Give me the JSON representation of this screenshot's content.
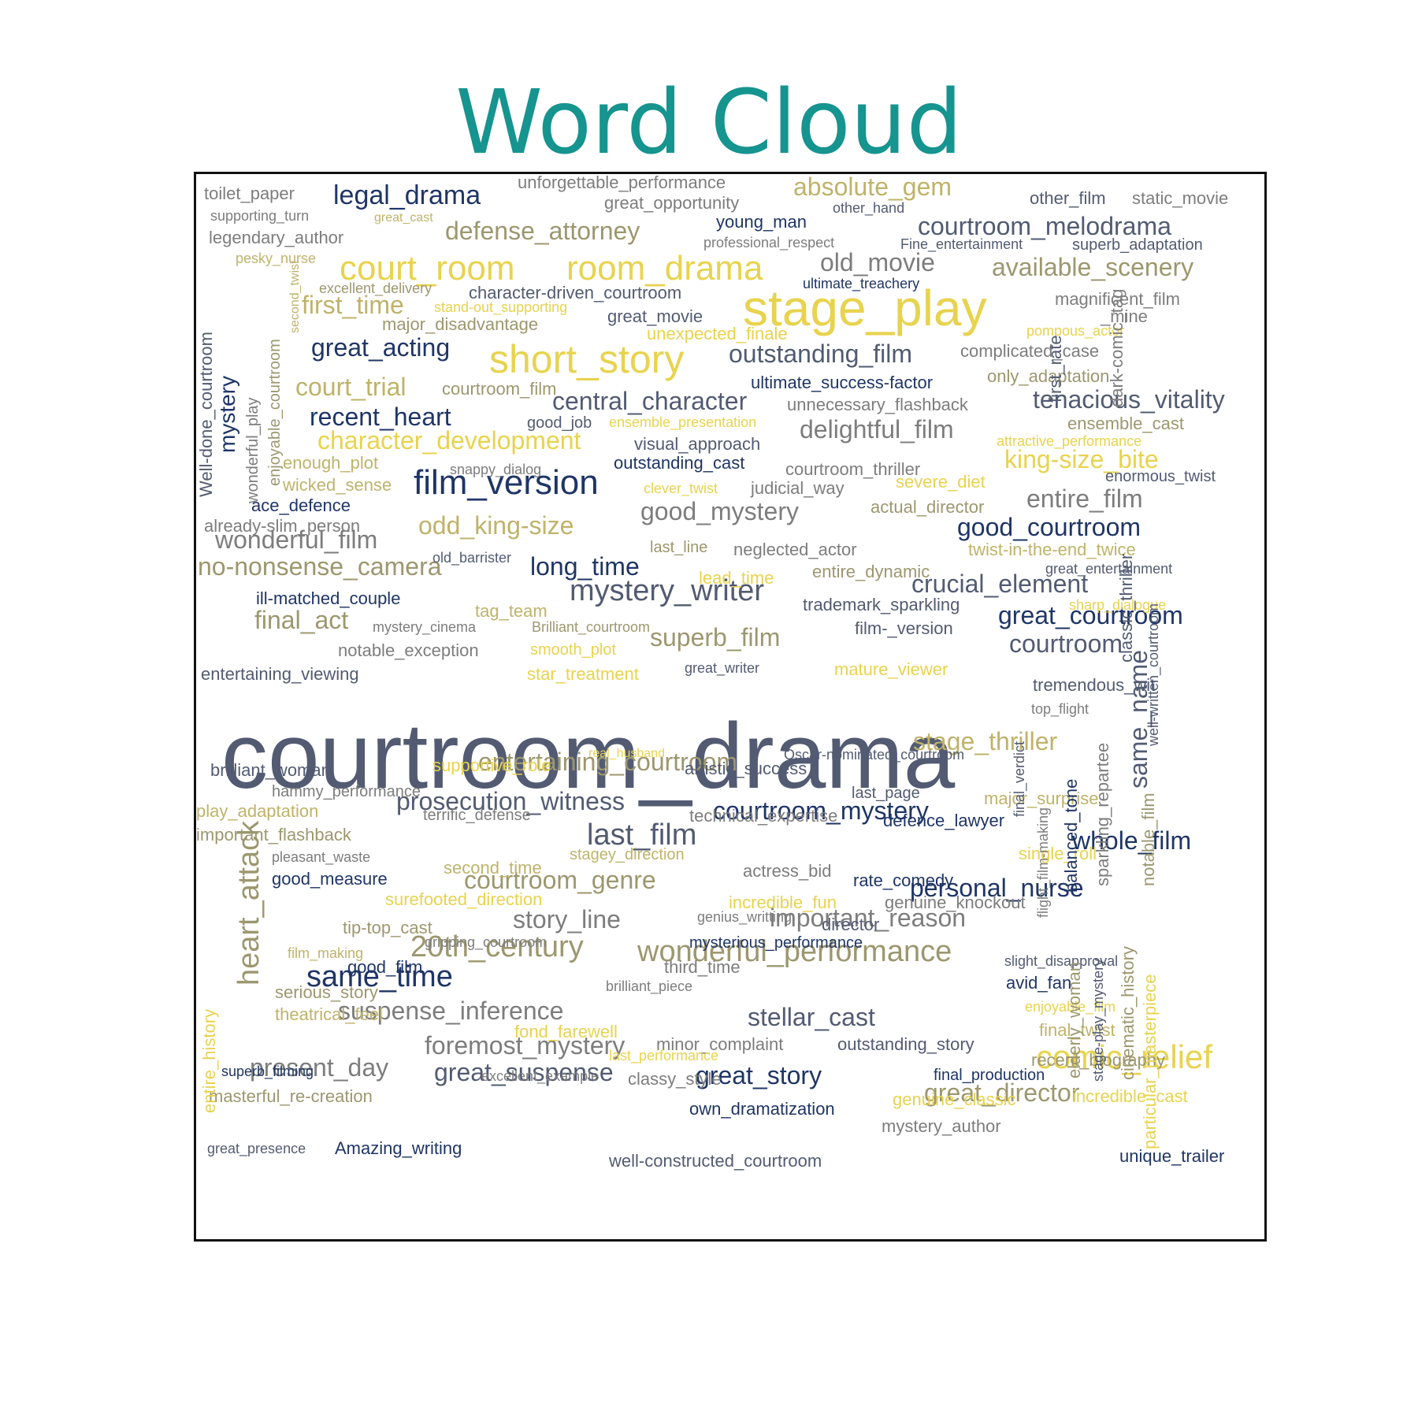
{
  "title": "Word Cloud",
  "palette": {
    "navy": "#1f3566",
    "slate": "#525b72",
    "gray": "#7d7d7d",
    "khaki": "#9d976f",
    "tan": "#bfb36a",
    "yellow": "#e8d34e"
  },
  "chart_data": {
    "type": "wordcloud",
    "title": "Word Cloud",
    "words": [
      {
        "text": "courtroom_drama",
        "weight": 100,
        "color": "slate"
      },
      {
        "text": "stage_play",
        "weight": 38,
        "color": "yellow"
      },
      {
        "text": "court_room",
        "weight": 26,
        "color": "yellow"
      },
      {
        "text": "room_drama",
        "weight": 26,
        "color": "yellow"
      },
      {
        "text": "short_story",
        "weight": 28,
        "color": "yellow"
      },
      {
        "text": "film_version",
        "weight": 24,
        "color": "navy"
      },
      {
        "text": "wonderful_performance",
        "weight": 21,
        "color": "khaki"
      },
      {
        "text": "comic_relief",
        "weight": 23,
        "color": "yellow"
      },
      {
        "text": "heart_attack",
        "weight": 20,
        "color": "khaki"
      },
      {
        "text": "mystery_writer",
        "weight": 21,
        "color": "slate"
      },
      {
        "text": "20th_century",
        "weight": 21,
        "color": "khaki"
      },
      {
        "text": "same_time",
        "weight": 21,
        "color": "navy"
      },
      {
        "text": "last_film",
        "weight": 21,
        "color": "slate"
      },
      {
        "text": "legal_drama",
        "weight": 19,
        "color": "navy"
      },
      {
        "text": "absolute_gem",
        "weight": 17,
        "color": "tan"
      },
      {
        "text": "defense_attorney",
        "weight": 18,
        "color": "khaki"
      },
      {
        "text": "courtroom_melodrama",
        "weight": 18,
        "color": "slate"
      },
      {
        "text": "old_movie",
        "weight": 18,
        "color": "gray"
      },
      {
        "text": "available_scenery",
        "weight": 18,
        "color": "khaki"
      },
      {
        "text": "first_time",
        "weight": 18,
        "color": "tan"
      },
      {
        "text": "great_acting",
        "weight": 18,
        "color": "navy"
      },
      {
        "text": "outstanding_film",
        "weight": 18,
        "color": "slate"
      },
      {
        "text": "court_trial",
        "weight": 18,
        "color": "tan"
      },
      {
        "text": "central_character",
        "weight": 18,
        "color": "slate"
      },
      {
        "text": "tenacious_vitality",
        "weight": 18,
        "color": "slate"
      },
      {
        "text": "recent_heart",
        "weight": 18,
        "color": "navy"
      },
      {
        "text": "delightful_film",
        "weight": 18,
        "color": "gray"
      },
      {
        "text": "character_development",
        "weight": 18,
        "color": "yellow"
      },
      {
        "text": "king-size_bite",
        "weight": 18,
        "color": "yellow"
      },
      {
        "text": "good_mystery",
        "weight": 18,
        "color": "gray"
      },
      {
        "text": "entire_film",
        "weight": 18,
        "color": "gray"
      },
      {
        "text": "odd_king-size",
        "weight": 18,
        "color": "tan"
      },
      {
        "text": "good_courtroom",
        "weight": 18,
        "color": "navy"
      },
      {
        "text": "wonderful_film",
        "weight": 18,
        "color": "gray"
      },
      {
        "text": "long_time",
        "weight": 18,
        "color": "navy"
      },
      {
        "text": "no-nonsense_camera",
        "weight": 18,
        "color": "khaki"
      },
      {
        "text": "crucial_element",
        "weight": 18,
        "color": "slate"
      },
      {
        "text": "final_act",
        "weight": 18,
        "color": "khaki"
      },
      {
        "text": "great_courtroom",
        "weight": 18,
        "color": "navy"
      },
      {
        "text": "superb_film",
        "weight": 18,
        "color": "khaki"
      },
      {
        "text": "courtroom",
        "weight": 18,
        "color": "slate"
      },
      {
        "text": "stage_thriller",
        "weight": 18,
        "color": "tan"
      },
      {
        "text": "entertaining_courtroom",
        "weight": 18,
        "color": "khaki"
      },
      {
        "text": "prosecution_witness",
        "weight": 18,
        "color": "slate"
      },
      {
        "text": "courtroom_mystery",
        "weight": 18,
        "color": "navy"
      },
      {
        "text": "whole_film",
        "weight": 18,
        "color": "navy"
      },
      {
        "text": "courtroom_genre",
        "weight": 18,
        "color": "khaki"
      },
      {
        "text": "personal_nurse",
        "weight": 18,
        "color": "navy"
      },
      {
        "text": "story_line",
        "weight": 18,
        "color": "gray"
      },
      {
        "text": "important_reason",
        "weight": 18,
        "color": "gray"
      },
      {
        "text": "suspense_inference",
        "weight": 18,
        "color": "gray"
      },
      {
        "text": "stellar_cast",
        "weight": 18,
        "color": "slate"
      },
      {
        "text": "foremost_mystery",
        "weight": 18,
        "color": "gray"
      },
      {
        "text": "present_day",
        "weight": 18,
        "color": "gray"
      },
      {
        "text": "great_suspense",
        "weight": 18,
        "color": "slate"
      },
      {
        "text": "great_story",
        "weight": 18,
        "color": "navy"
      },
      {
        "text": "great_director",
        "weight": 18,
        "color": "khaki"
      },
      {
        "text": "same_name",
        "weight": 18,
        "color": "slate"
      },
      {
        "text": "mystery",
        "weight": 16,
        "color": "navy"
      },
      {
        "text": "toilet_paper",
        "weight": 12,
        "color": "gray"
      },
      {
        "text": "unforgettable_performance",
        "weight": 12,
        "color": "gray"
      },
      {
        "text": "great_opportunity",
        "weight": 12,
        "color": "gray"
      },
      {
        "text": "other_film",
        "weight": 12,
        "color": "slate"
      },
      {
        "text": "static_movie",
        "weight": 12,
        "color": "gray"
      },
      {
        "text": "supporting_turn",
        "weight": 10,
        "color": "gray"
      },
      {
        "text": "great_cast",
        "weight": 10,
        "color": "tan"
      },
      {
        "text": "young_man",
        "weight": 12,
        "color": "navy"
      },
      {
        "text": "other_hand",
        "weight": 10,
        "color": "slate"
      },
      {
        "text": "legendary_author",
        "weight": 12,
        "color": "gray"
      },
      {
        "text": "professional_respect",
        "weight": 10,
        "color": "gray"
      },
      {
        "text": "Fine_entertainment",
        "weight": 10,
        "color": "slate"
      },
      {
        "text": "superb_adaptation",
        "weight": 11,
        "color": "slate"
      },
      {
        "text": "pesky_nurse",
        "weight": 10,
        "color": "tan"
      },
      {
        "text": "excellent_delivery",
        "weight": 10,
        "color": "khaki"
      },
      {
        "text": "ultimate_treachery",
        "weight": 10,
        "color": "navy"
      },
      {
        "text": "character-driven_courtroom",
        "weight": 12,
        "color": "slate"
      },
      {
        "text": "magnificent_film",
        "weight": 12,
        "color": "gray"
      },
      {
        "text": "stand-out_supporting",
        "weight": 10,
        "color": "yellow"
      },
      {
        "text": "great_movie",
        "weight": 12,
        "color": "slate"
      },
      {
        "text": "_mine",
        "weight": 12,
        "color": "gray"
      },
      {
        "text": "major_disadvantage",
        "weight": 12,
        "color": "khaki"
      },
      {
        "text": "unexpected_finale",
        "weight": 12,
        "color": "yellow"
      },
      {
        "text": "pompous_actor",
        "weight": 10,
        "color": "yellow"
      },
      {
        "text": "complicated_case",
        "weight": 12,
        "color": "gray"
      },
      {
        "text": "ultimate_success-factor",
        "weight": 12,
        "color": "navy"
      },
      {
        "text": "only_adaptation",
        "weight": 12,
        "color": "khaki"
      },
      {
        "text": "courtroom_film",
        "weight": 12,
        "color": "khaki"
      },
      {
        "text": "unnecessary_flashback",
        "weight": 12,
        "color": "gray"
      },
      {
        "text": "good_job",
        "weight": 10,
        "color": "slate"
      },
      {
        "text": "ensemble_presentation",
        "weight": 10,
        "color": "yellow"
      },
      {
        "text": "ensemble_cast",
        "weight": 12,
        "color": "khaki"
      },
      {
        "text": "visual_approach",
        "weight": 12,
        "color": "slate"
      },
      {
        "text": "attractive_performance",
        "weight": 10,
        "color": "yellow"
      },
      {
        "text": "enough_plot",
        "weight": 12,
        "color": "tan"
      },
      {
        "text": "snappy_dialog",
        "weight": 10,
        "color": "gray"
      },
      {
        "text": "outstanding_cast",
        "weight": 12,
        "color": "navy"
      },
      {
        "text": "courtroom_thriller",
        "weight": 12,
        "color": "gray"
      },
      {
        "text": "wicked_sense",
        "weight": 12,
        "color": "tan"
      },
      {
        "text": "clever_twist",
        "weight": 10,
        "color": "yellow"
      },
      {
        "text": "judicial_way",
        "weight": 12,
        "color": "gray"
      },
      {
        "text": "severe_diet",
        "weight": 12,
        "color": "yellow"
      },
      {
        "text": "enormous_twist",
        "weight": 11,
        "color": "slate"
      },
      {
        "text": "ace_defence",
        "weight": 12,
        "color": "navy"
      },
      {
        "text": "actual_director",
        "weight": 12,
        "color": "khaki"
      },
      {
        "text": "already-slim_person",
        "weight": 12,
        "color": "gray"
      },
      {
        "text": "last_line",
        "weight": 11,
        "color": "khaki"
      },
      {
        "text": "neglected_actor",
        "weight": 12,
        "color": "gray"
      },
      {
        "text": "twist-in-the-end_twice",
        "weight": 12,
        "color": "tan"
      },
      {
        "text": "old_barrister",
        "weight": 10,
        "color": "slate"
      },
      {
        "text": "lead_time",
        "weight": 12,
        "color": "yellow"
      },
      {
        "text": "entire_dynamic",
        "weight": 12,
        "color": "khaki"
      },
      {
        "text": "great_entertainment",
        "weight": 10,
        "color": "slate"
      },
      {
        "text": "ill-matched_couple",
        "weight": 12,
        "color": "navy"
      },
      {
        "text": "tag_team",
        "weight": 12,
        "color": "tan"
      },
      {
        "text": "trademark_sparkling",
        "weight": 12,
        "color": "slate"
      },
      {
        "text": "sharp_dialogue",
        "weight": 10,
        "color": "yellow"
      },
      {
        "text": "mystery_cinema",
        "weight": 10,
        "color": "gray"
      },
      {
        "text": "Brilliant_courtroom",
        "weight": 10,
        "color": "khaki"
      },
      {
        "text": "film-_version",
        "weight": 12,
        "color": "slate"
      },
      {
        "text": "notable_exception",
        "weight": 12,
        "color": "gray"
      },
      {
        "text": "smooth_plot",
        "weight": 11,
        "color": "yellow"
      },
      {
        "text": "entertaining_viewing",
        "weight": 12,
        "color": "slate"
      },
      {
        "text": "star_treatment",
        "weight": 12,
        "color": "yellow"
      },
      {
        "text": "great_writer",
        "weight": 10,
        "color": "slate"
      },
      {
        "text": "mature_viewer",
        "weight": 12,
        "color": "yellow"
      },
      {
        "text": "tremendous_wit",
        "weight": 12,
        "color": "slate"
      },
      {
        "text": "top_flight",
        "weight": 10,
        "color": "gray"
      },
      {
        "text": "real_husband",
        "weight": 9,
        "color": "yellow"
      },
      {
        "text": "Oscar-nominated_courtroom",
        "weight": 10,
        "color": "slate"
      },
      {
        "text": "brilliant_woman",
        "weight": 12,
        "color": "slate"
      },
      {
        "text": "supportive_role",
        "weight": 12,
        "color": "yellow"
      },
      {
        "text": "artistic_success",
        "weight": 12,
        "color": "slate"
      },
      {
        "text": "hammy_performance",
        "weight": 11,
        "color": "gray"
      },
      {
        "text": "last_page",
        "weight": 11,
        "color": "slate"
      },
      {
        "text": "major_surprise",
        "weight": 12,
        "color": "tan"
      },
      {
        "text": "play_adaptation",
        "weight": 12,
        "color": "tan"
      },
      {
        "text": "terrific_defense",
        "weight": 11,
        "color": "gray"
      },
      {
        "text": "technical_expertise",
        "weight": 12,
        "color": "gray"
      },
      {
        "text": "defence_lawyer",
        "weight": 12,
        "color": "navy"
      },
      {
        "text": "important_flashback",
        "weight": 12,
        "color": "khaki"
      },
      {
        "text": "pleasant_waste",
        "weight": 10,
        "color": "gray"
      },
      {
        "text": "stagey_direction",
        "weight": 11,
        "color": "tan"
      },
      {
        "text": "single_roll",
        "weight": 12,
        "color": "yellow"
      },
      {
        "text": "good_measure",
        "weight": 12,
        "color": "navy"
      },
      {
        "text": "second_time",
        "weight": 12,
        "color": "tan"
      },
      {
        "text": "actress_bid",
        "weight": 12,
        "color": "gray"
      },
      {
        "text": "rate_comedy",
        "weight": 12,
        "color": "navy"
      },
      {
        "text": "surefooted_direction",
        "weight": 12,
        "color": "yellow"
      },
      {
        "text": "incredible_fun",
        "weight": 12,
        "color": "yellow"
      },
      {
        "text": "genuine_knockout",
        "weight": 12,
        "color": "gray"
      },
      {
        "text": "tip-top_cast",
        "weight": 12,
        "color": "khaki"
      },
      {
        "text": "genius_writting",
        "weight": 10,
        "color": "gray"
      },
      {
        "text": "director",
        "weight": 12,
        "color": "slate"
      },
      {
        "text": "film_making",
        "weight": 10,
        "color": "tan"
      },
      {
        "text": "gripping_courtroom",
        "weight": 10,
        "color": "gray"
      },
      {
        "text": "mysterious_performance",
        "weight": 11,
        "color": "navy"
      },
      {
        "text": "slight_disapproval",
        "weight": 10,
        "color": "slate"
      },
      {
        "text": "good_film",
        "weight": 12,
        "color": "navy"
      },
      {
        "text": "third_time",
        "weight": 12,
        "color": "gray"
      },
      {
        "text": "avid_fan",
        "weight": 12,
        "color": "navy"
      },
      {
        "text": "brilliant_piece",
        "weight": 10,
        "color": "gray"
      },
      {
        "text": "serious_story",
        "weight": 12,
        "color": "khaki"
      },
      {
        "text": "enjoyable_film",
        "weight": 10,
        "color": "yellow"
      },
      {
        "text": "theatrical_feel",
        "weight": 12,
        "color": "tan"
      },
      {
        "text": "fond_farewell",
        "weight": 12,
        "color": "yellow"
      },
      {
        "text": "final_twist",
        "weight": 12,
        "color": "tan"
      },
      {
        "text": "minor_complaint",
        "weight": 12,
        "color": "gray"
      },
      {
        "text": "outstanding_story",
        "weight": 12,
        "color": "slate"
      },
      {
        "text": "last_performance",
        "weight": 10,
        "color": "yellow"
      },
      {
        "text": "recent_biography",
        "weight": 12,
        "color": "khaki"
      },
      {
        "text": "superb_filming",
        "weight": 10,
        "color": "navy"
      },
      {
        "text": "excellent_example",
        "weight": 10,
        "color": "gray"
      },
      {
        "text": "classy_style",
        "weight": 12,
        "color": "gray"
      },
      {
        "text": "final_production",
        "weight": 11,
        "color": "navy"
      },
      {
        "text": "masterful_re-creation",
        "weight": 12,
        "color": "khaki"
      },
      {
        "text": "genuine_classic",
        "weight": 12,
        "color": "yellow"
      },
      {
        "text": "incredible_cast",
        "weight": 12,
        "color": "yellow"
      },
      {
        "text": "own_dramatization",
        "weight": 12,
        "color": "navy"
      },
      {
        "text": "mystery_author",
        "weight": 12,
        "color": "gray"
      },
      {
        "text": "great_presence",
        "weight": 10,
        "color": "slate"
      },
      {
        "text": "Amazing_writing",
        "weight": 12,
        "color": "navy"
      },
      {
        "text": "well-constructed_courtroom",
        "weight": 12,
        "color": "slate"
      },
      {
        "text": "unique_trailer",
        "weight": 12,
        "color": "navy"
      },
      {
        "text": "Well-done_courtroom",
        "weight": 12,
        "color": "slate"
      },
      {
        "text": "wonderful_play",
        "weight": 11,
        "color": "gray"
      },
      {
        "text": "enjoyable_courtroom",
        "weight": 11,
        "color": "khaki"
      },
      {
        "text": "second_twist",
        "weight": 9,
        "color": "tan"
      },
      {
        "text": "dark-comic_tag",
        "weight": 12,
        "color": "gray"
      },
      {
        "text": "first_rate",
        "weight": 12,
        "color": "slate"
      },
      {
        "text": "classic_thriller",
        "weight": 12,
        "color": "slate"
      },
      {
        "text": "well-written_courtroom",
        "weight": 10,
        "color": "slate"
      },
      {
        "text": "sparkling_repartee",
        "weight": 12,
        "color": "gray"
      },
      {
        "text": "balanced_tone",
        "weight": 12,
        "color": "navy"
      },
      {
        "text": "flight_film-making",
        "weight": 10,
        "color": "gray"
      },
      {
        "text": "final_verdict",
        "weight": 10,
        "color": "slate"
      },
      {
        "text": "notable_film",
        "weight": 12,
        "color": "khaki"
      },
      {
        "text": "elderly_woman",
        "weight": 12,
        "color": "khaki"
      },
      {
        "text": "stage-play_mystery",
        "weight": 10,
        "color": "slate"
      },
      {
        "text": "cinematic_history",
        "weight": 12,
        "color": "khaki"
      },
      {
        "text": "particular_masterpiece",
        "weight": 12,
        "color": "yellow"
      },
      {
        "text": "entire_history",
        "weight": 12,
        "color": "yellow"
      }
    ]
  }
}
